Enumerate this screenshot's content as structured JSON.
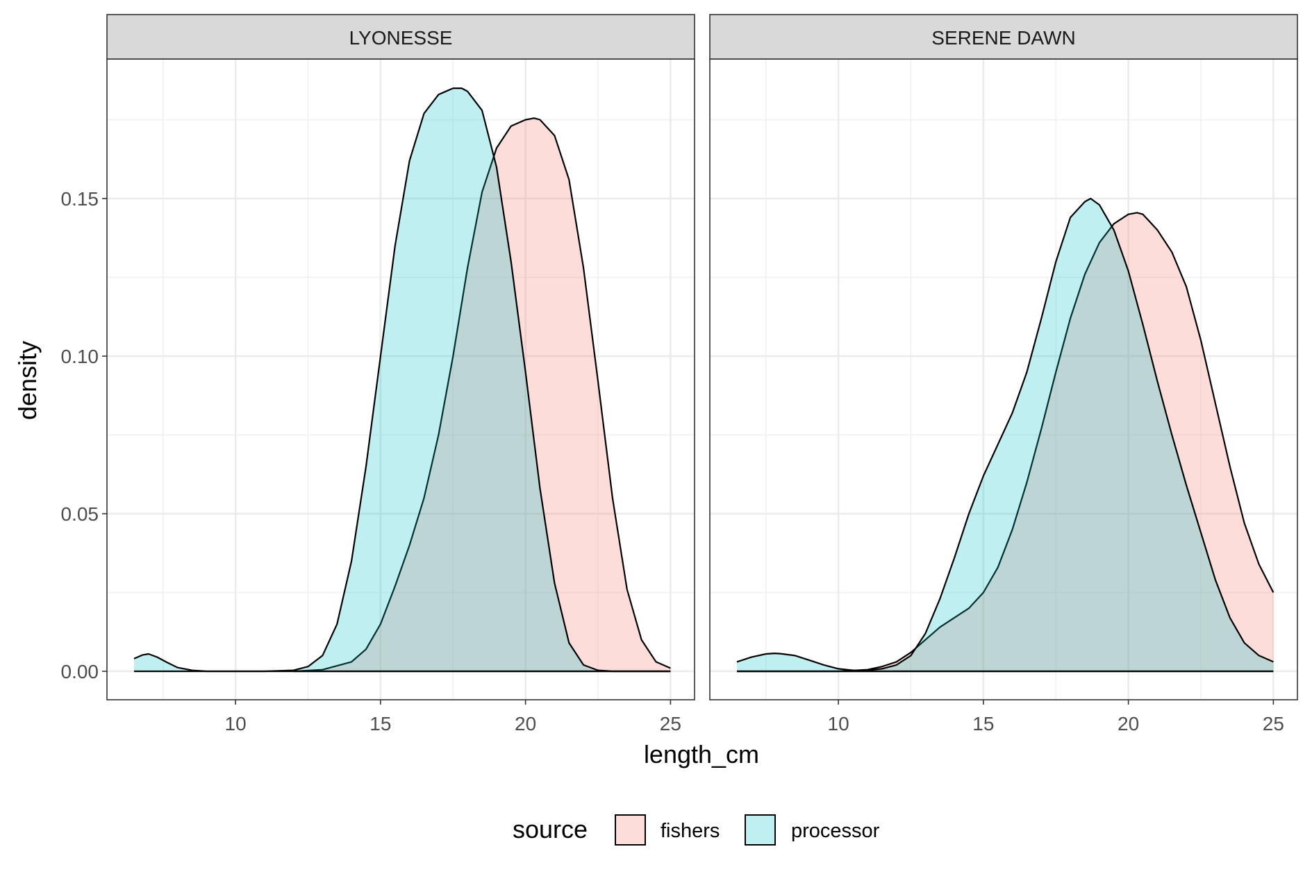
{
  "chart_data": {
    "type": "area",
    "subtype": "faceted-density",
    "xlabel": "length_cm",
    "ylabel": "density",
    "xlim": [
      6.5,
      25
    ],
    "ylim": [
      0,
      0.185
    ],
    "x_ticks": [
      10,
      15,
      20,
      25
    ],
    "x_tick_labels": [
      "10",
      "15",
      "20",
      "25"
    ],
    "y_ticks": [
      0.0,
      0.05,
      0.1,
      0.15
    ],
    "y_tick_labels": [
      "0.00",
      "0.05",
      "0.10",
      "0.15"
    ],
    "grid": true,
    "legend": {
      "title": "source",
      "position": "bottom",
      "items": [
        {
          "label": "fishers",
          "color": "#F8766D"
        },
        {
          "label": "processor",
          "color": "#00BFC4"
        }
      ]
    },
    "fill_alpha": 0.25,
    "panels": [
      {
        "title": "LYONESSE",
        "series": [
          {
            "name": "fishers",
            "color": "#F8766D",
            "x": [
              12.0,
              13.0,
              14.0,
              14.5,
              15.0,
              15.5,
              16.0,
              16.5,
              17.0,
              17.5,
              18.0,
              18.5,
              19.0,
              19.5,
              20.0,
              20.3,
              20.5,
              21.0,
              21.5,
              22.0,
              22.5,
              23.0,
              23.5,
              24.0,
              24.5,
              25.0
            ],
            "y": [
              0.0,
              0.0005,
              0.003,
              0.007,
              0.015,
              0.027,
              0.04,
              0.055,
              0.075,
              0.1,
              0.128,
              0.152,
              0.166,
              0.173,
              0.175,
              0.1755,
              0.175,
              0.17,
              0.156,
              0.128,
              0.092,
              0.055,
              0.026,
              0.01,
              0.003,
              0.001
            ]
          },
          {
            "name": "processor",
            "color": "#00BFC4",
            "x": [
              6.5,
              6.8,
              7.0,
              7.3,
              7.6,
              8.0,
              8.5,
              9.0,
              10.0,
              11.0,
              12.0,
              12.5,
              13.0,
              13.5,
              14.0,
              14.5,
              15.0,
              15.5,
              16.0,
              16.5,
              17.0,
              17.5,
              17.8,
              18.0,
              18.5,
              19.0,
              19.5,
              20.0,
              20.5,
              21.0,
              21.5,
              22.0,
              22.5,
              23.0,
              23.5,
              24.0,
              25.0
            ],
            "y": [
              0.004,
              0.0052,
              0.0055,
              0.0045,
              0.003,
              0.0012,
              0.0003,
              0.0,
              0.0,
              0.0,
              0.0003,
              0.0015,
              0.005,
              0.015,
              0.035,
              0.065,
              0.1,
              0.135,
              0.162,
              0.177,
              0.183,
              0.185,
              0.185,
              0.184,
              0.178,
              0.16,
              0.13,
              0.095,
              0.058,
              0.028,
              0.009,
              0.002,
              0.0003,
              0.0,
              0.0,
              0.0,
              0.0
            ]
          }
        ]
      },
      {
        "title": "SERENE DAWN",
        "series": [
          {
            "name": "fishers",
            "color": "#F8766D",
            "x": [
              6.5,
              8.0,
              9.0,
              10.0,
              11.0,
              11.5,
              12.0,
              12.5,
              13.0,
              13.5,
              14.0,
              14.5,
              15.0,
              15.5,
              16.0,
              16.5,
              17.0,
              17.5,
              18.0,
              18.5,
              19.0,
              19.5,
              20.0,
              20.3,
              20.5,
              21.0,
              21.5,
              22.0,
              22.5,
              23.0,
              23.5,
              24.0,
              24.5,
              25.0
            ],
            "y": [
              0.0,
              0.0,
              0.0,
              0.0,
              0.0005,
              0.0015,
              0.003,
              0.006,
              0.01,
              0.014,
              0.017,
              0.02,
              0.025,
              0.033,
              0.045,
              0.06,
              0.077,
              0.095,
              0.112,
              0.126,
              0.136,
              0.142,
              0.145,
              0.1455,
              0.145,
              0.14,
              0.133,
              0.122,
              0.105,
              0.085,
              0.065,
              0.047,
              0.034,
              0.025
            ]
          },
          {
            "name": "processor",
            "color": "#00BFC4",
            "x": [
              6.5,
              7.0,
              7.5,
              7.8,
              8.0,
              8.5,
              9.0,
              9.5,
              10.0,
              10.5,
              11.0,
              11.5,
              12.0,
              12.5,
              13.0,
              13.5,
              14.0,
              14.5,
              15.0,
              15.5,
              16.0,
              16.5,
              17.0,
              17.5,
              18.0,
              18.5,
              18.7,
              19.0,
              19.5,
              20.0,
              20.5,
              21.0,
              21.5,
              22.0,
              22.5,
              23.0,
              23.5,
              24.0,
              24.5,
              25.0
            ],
            "y": [
              0.003,
              0.0045,
              0.0055,
              0.0057,
              0.0056,
              0.005,
              0.0035,
              0.002,
              0.0008,
              0.0003,
              0.0003,
              0.0008,
              0.002,
              0.005,
              0.012,
              0.023,
              0.036,
              0.05,
              0.062,
              0.072,
              0.082,
              0.095,
              0.112,
              0.13,
              0.144,
              0.149,
              0.15,
              0.148,
              0.14,
              0.127,
              0.11,
              0.092,
              0.075,
              0.059,
              0.044,
              0.029,
              0.017,
              0.009,
              0.005,
              0.003
            ]
          }
        ]
      }
    ]
  }
}
